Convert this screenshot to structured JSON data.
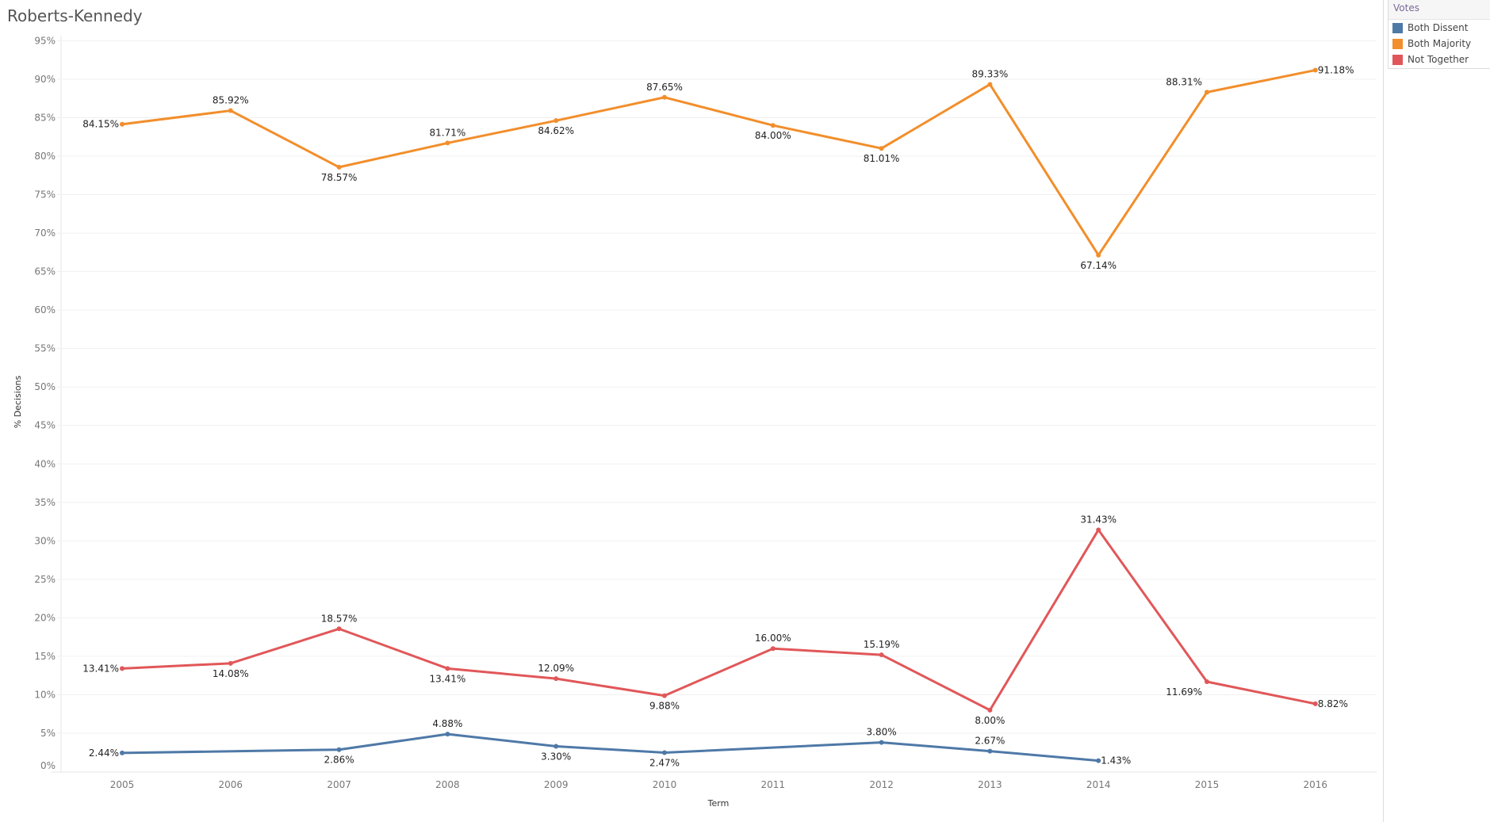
{
  "chart_data": {
    "type": "line",
    "title": "Roberts-Kennedy",
    "xlabel": "Term",
    "ylabel": "% Decisions",
    "x": [
      "2005",
      "2006",
      "2007",
      "2008",
      "2009",
      "2010",
      "2011",
      "2012",
      "2013",
      "2014",
      "2015",
      "2016"
    ],
    "yticks": [
      "0%",
      "5%",
      "10%",
      "15%",
      "20%",
      "25%",
      "30%",
      "35%",
      "40%",
      "45%",
      "50%",
      "55%",
      "60%",
      "65%",
      "70%",
      "75%",
      "80%",
      "85%",
      "90%",
      "95%"
    ],
    "ylim": [
      -0.05,
      95.5
    ],
    "grid": true,
    "legend": {
      "title": "Votes",
      "placement": "right"
    },
    "series": [
      {
        "name": "Both Dissent",
        "color": "#4e79a7",
        "values": [
          2.44,
          null,
          2.86,
          4.88,
          3.3,
          2.47,
          null,
          3.8,
          2.67,
          1.43,
          null,
          null
        ],
        "labels": [
          "2.44%",
          "",
          "2.86%",
          "4.88%",
          "3.30%",
          "2.47%",
          "",
          "3.80%",
          "2.67%",
          "1.43%",
          "",
          ""
        ]
      },
      {
        "name": "Both Majority",
        "color": "#f28e2b",
        "values": [
          84.15,
          85.92,
          78.57,
          81.71,
          84.62,
          87.65,
          84.0,
          81.01,
          89.33,
          67.14,
          88.31,
          91.18
        ],
        "labels": [
          "84.15%",
          "85.92%",
          "78.57%",
          "81.71%",
          "84.62%",
          "87.65%",
          "84.00%",
          "81.01%",
          "89.33%",
          "67.14%",
          "88.31%",
          "91.18%"
        ]
      },
      {
        "name": "Not Together",
        "color": "#e15759",
        "values": [
          13.41,
          14.08,
          18.57,
          13.41,
          12.09,
          9.88,
          16.0,
          15.19,
          8.0,
          31.43,
          11.69,
          8.82
        ],
        "labels": [
          "13.41%",
          "14.08%",
          "18.57%",
          "13.41%",
          "12.09%",
          "9.88%",
          "16.00%",
          "15.19%",
          "8.00%",
          "31.43%",
          "11.69%",
          "8.82%"
        ]
      }
    ]
  }
}
